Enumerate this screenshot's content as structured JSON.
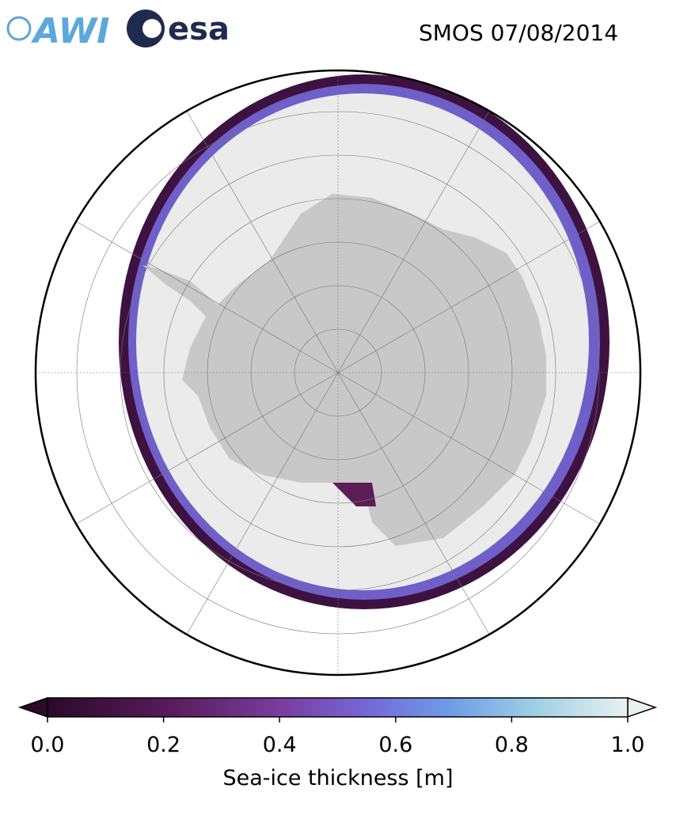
{
  "logos": {
    "awi": "AWI",
    "esa": "esa"
  },
  "title": "SMOS 07/08/2014",
  "colorbar": {
    "label": "Sea-ice thickness [m]",
    "lim": [
      0,
      1
    ],
    "ticks": [
      {
        "value": 0,
        "label": "0.0"
      },
      {
        "value": 0.2,
        "label": "0.2"
      },
      {
        "value": 0.4,
        "label": "0.4"
      },
      {
        "value": 0.6,
        "label": "0.6"
      },
      {
        "value": 0.8,
        "label": "0.8"
      },
      {
        "value": 1,
        "label": "1.0"
      }
    ]
  }
}
